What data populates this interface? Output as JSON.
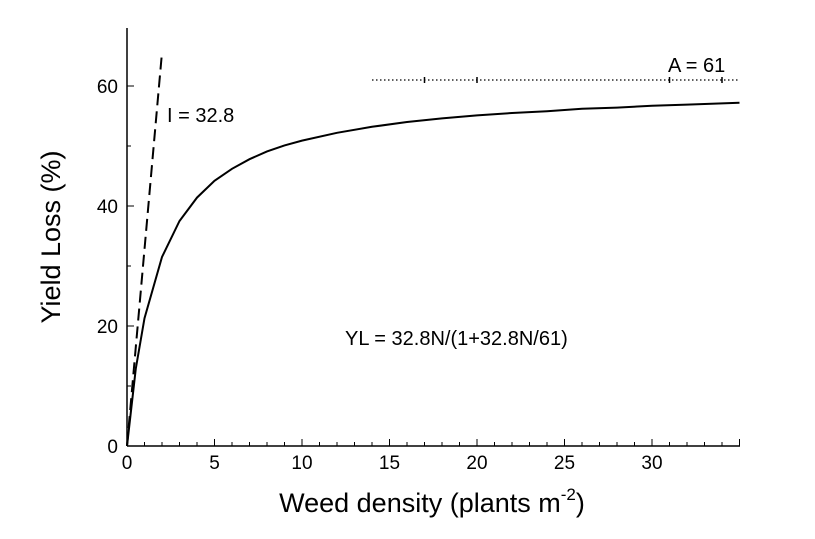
{
  "chart_data": {
    "type": "line",
    "title": "",
    "xlabel": "Weed density (plants m",
    "xlabel_sup": "-2",
    "xlabel_close": ")",
    "ylabel": "Yield Loss (%)",
    "xlim": [
      0,
      35
    ],
    "ylim": [
      0,
      70
    ],
    "x_ticks": [
      "0",
      "5",
      "10",
      "15",
      "20",
      "25",
      "30"
    ],
    "y_ticks": [
      "0",
      "20",
      "40",
      "60"
    ],
    "grid": false,
    "parameters": {
      "I": 32.8,
      "A": 61
    },
    "series": [
      {
        "style": "solid",
        "x": [
          0,
          0.5,
          1,
          2,
          3,
          4,
          5,
          6,
          7,
          8,
          9,
          10,
          12,
          14,
          16,
          18,
          20,
          22,
          24,
          26,
          28,
          30,
          32,
          34,
          35
        ],
        "y": [
          0,
          12.9,
          21.3,
          31.5,
          37.5,
          41.4,
          44.2,
          46.2,
          47.8,
          49.1,
          50.1,
          50.9,
          52.2,
          53.2,
          54.0,
          54.6,
          55.1,
          55.5,
          55.8,
          56.2,
          56.4,
          56.7,
          56.9,
          57.1,
          57.2
        ]
      },
      {
        "style": "dashed",
        "x": [
          0,
          2
        ],
        "y": [
          0,
          65.6
        ]
      },
      {
        "style": "dotted",
        "x": [
          14,
          35
        ],
        "y": [
          61,
          61
        ]
      }
    ],
    "annotations": {
      "initial_slope": "I = 32.8",
      "asymptote": "A = 61",
      "equation": "YL = 32.8N/(1+32.8N/61)"
    }
  }
}
